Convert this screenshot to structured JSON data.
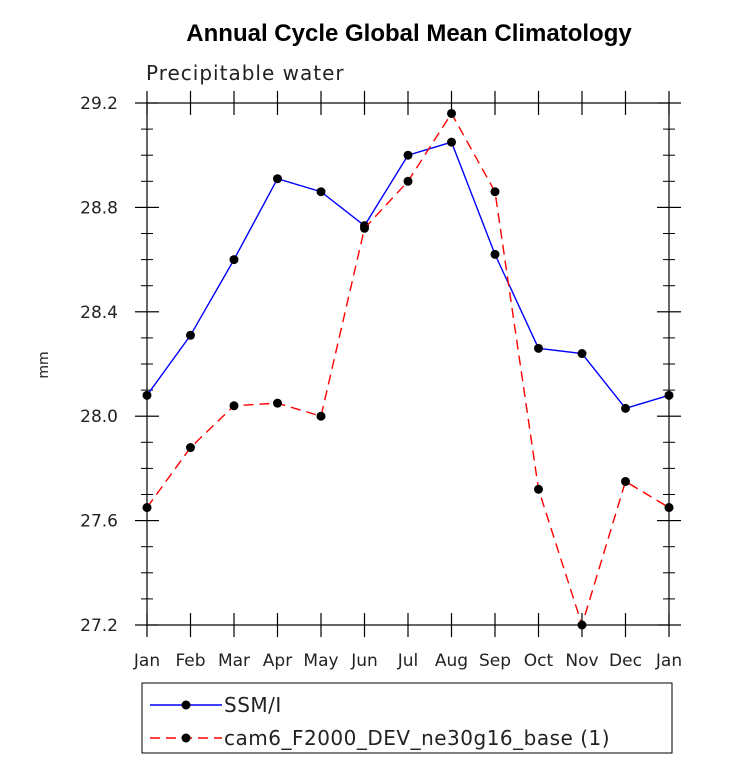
{
  "chart_data": {
    "type": "line",
    "title": "Annual Cycle Global Mean Climatology",
    "subtitle": "Precipitable water",
    "xlabel": "",
    "ylabel": "mm",
    "categories": [
      "Jan",
      "Feb",
      "Mar",
      "Apr",
      "May",
      "Jun",
      "Jul",
      "Aug",
      "Sep",
      "Oct",
      "Nov",
      "Dec",
      "Jan"
    ],
    "ylim": [
      27.2,
      29.2
    ],
    "yticks": [
      "27.2",
      "27.6",
      "28.0",
      "28.4",
      "28.8",
      "29.2"
    ],
    "series": [
      {
        "name": "SSM/I",
        "color": "#0000ff",
        "dash": "solid",
        "values": [
          28.08,
          28.31,
          28.6,
          28.91,
          28.86,
          28.73,
          29.0,
          29.05,
          28.62,
          28.26,
          28.24,
          28.03,
          28.08
        ]
      },
      {
        "name": "cam6_F2000_DEV_ne30g16_base (1)",
        "color": "#ff0000",
        "dash": "dashed",
        "values": [
          27.65,
          27.88,
          28.04,
          28.05,
          28.0,
          28.72,
          28.9,
          29.16,
          28.86,
          27.72,
          27.2,
          27.75,
          27.65
        ]
      }
    ],
    "grid": false,
    "legend_position": "bottom"
  }
}
